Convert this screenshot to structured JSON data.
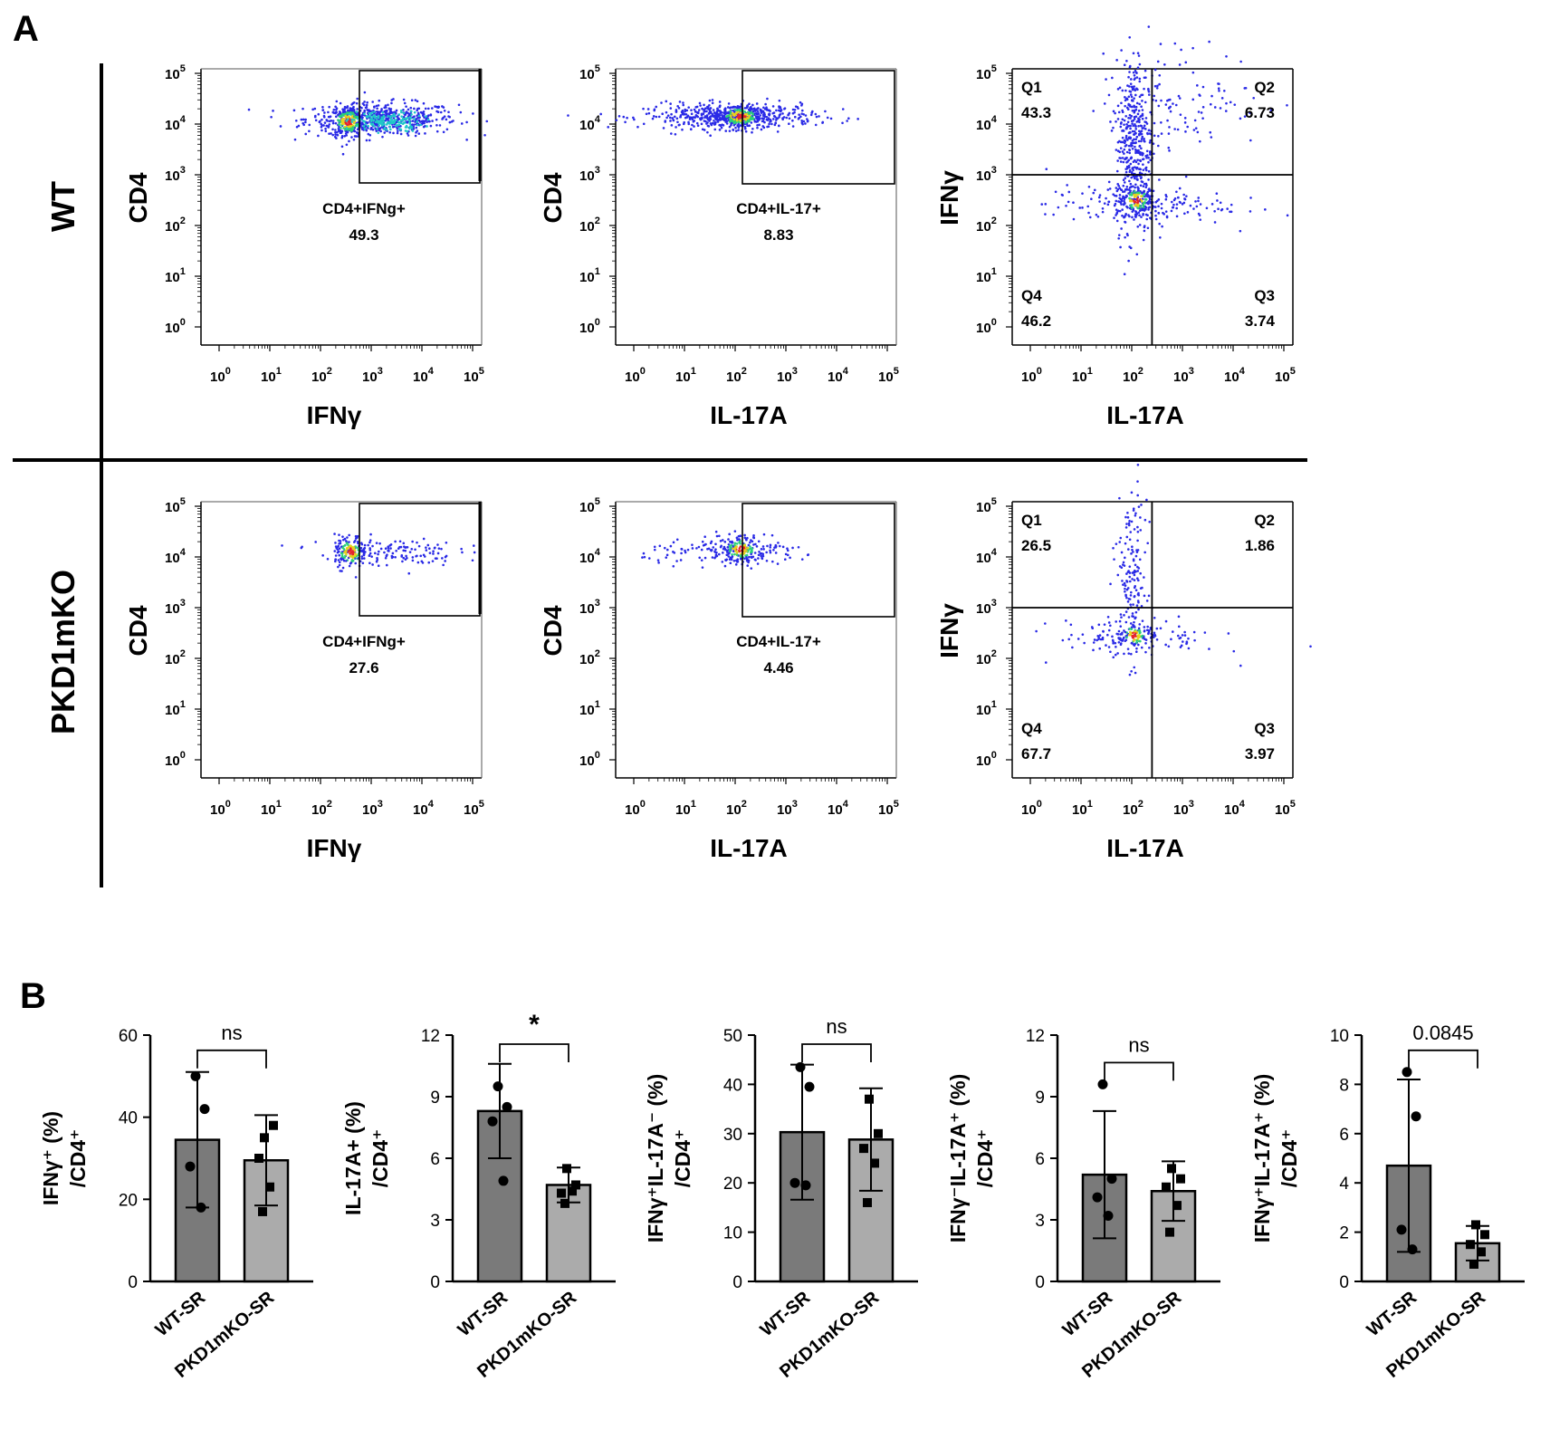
{
  "panels": {
    "a": "A",
    "b": "B"
  },
  "rows": {
    "wt": "WT",
    "ko": "PKD1mKO"
  },
  "chart_data": {
    "flow_plots": [
      {
        "row": "WT",
        "type": "scatter",
        "xlabel": "IFNγ",
        "ylabel": "CD4",
        "gate": "rect",
        "gate_label": "CD4+IFNg+",
        "gate_value": "49.3"
      },
      {
        "row": "WT",
        "type": "scatter",
        "xlabel": "IL-17A",
        "ylabel": "CD4",
        "gate": "rect",
        "gate_label": "CD4+IL-17+",
        "gate_value": "8.83"
      },
      {
        "row": "WT",
        "type": "scatter",
        "xlabel": "IL-17A",
        "ylabel": "IFNγ",
        "gate": "quadrant",
        "quadrants": [
          {
            "name": "Q1",
            "value": "43.3"
          },
          {
            "name": "Q2",
            "value": "6.73"
          },
          {
            "name": "Q3",
            "value": "3.74"
          },
          {
            "name": "Q4",
            "value": "46.2"
          }
        ]
      },
      {
        "row": "PKD1mKO",
        "type": "scatter",
        "xlabel": "IFNγ",
        "ylabel": "CD4",
        "gate": "rect",
        "gate_label": "CD4+IFNg+",
        "gate_value": "27.6"
      },
      {
        "row": "PKD1mKO",
        "type": "scatter",
        "xlabel": "IL-17A",
        "ylabel": "CD4",
        "gate": "rect",
        "gate_label": "CD4+IL-17+",
        "gate_value": "4.46"
      },
      {
        "row": "PKD1mKO",
        "type": "scatter",
        "xlabel": "IL-17A",
        "ylabel": "IFNγ",
        "gate": "quadrant",
        "quadrants": [
          {
            "name": "Q1",
            "value": "26.5"
          },
          {
            "name": "Q2",
            "value": "1.86"
          },
          {
            "name": "Q3",
            "value": "3.97"
          },
          {
            "name": "Q4",
            "value": "67.7"
          }
        ]
      }
    ],
    "log_ticks": [
      "0",
      "1",
      "2",
      "3",
      "4",
      "5"
    ],
    "bar_charts": [
      {
        "type": "bar",
        "categories": [
          "WT-SR",
          "PKD1mKO-SR"
        ],
        "ylabel_lines": [
          "IFNγ⁺ (%)",
          "/CD4⁺"
        ],
        "ylim": [
          0,
          60
        ],
        "yticks": [
          0,
          20,
          40,
          60
        ],
        "tick_labels": [
          "0",
          "20",
          "40",
          "60"
        ],
        "means": [
          34.5,
          29.5
        ],
        "errors": [
          16.5,
          11
        ],
        "points": [
          [
            50,
            42,
            28,
            18
          ],
          [
            35,
            38,
            30,
            23,
            17
          ]
        ],
        "significance": "ns"
      },
      {
        "type": "bar",
        "categories": [
          "WT-SR",
          "PKD1mKO-SR"
        ],
        "ylabel_lines": [
          "IL-17A+ (%)",
          "/CD4⁺"
        ],
        "ylim": [
          0,
          12
        ],
        "yticks": [
          0,
          3,
          6,
          9,
          12
        ],
        "tick_labels": [
          "0",
          "3",
          "6",
          "9",
          "12"
        ],
        "means": [
          8.3,
          4.7
        ],
        "errors": [
          2.3,
          0.85
        ],
        "points": [
          [
            9.5,
            8.5,
            7.8,
            4.9
          ],
          [
            5.5,
            4.7,
            4.3,
            4.4,
            3.8
          ]
        ],
        "significance": "*"
      },
      {
        "type": "bar",
        "categories": [
          "WT-SR",
          "PKD1mKO-SR"
        ],
        "ylabel_lines": [
          "IFNγ⁺IL-17A⁻ (%)",
          "/CD4⁺"
        ],
        "ylim": [
          0,
          50
        ],
        "yticks": [
          0,
          10,
          20,
          30,
          40,
          50
        ],
        "tick_labels": [
          "0",
          "10",
          "20",
          "30",
          "40",
          "50"
        ],
        "means": [
          30.3,
          28.8
        ],
        "errors": [
          13.7,
          10.4
        ],
        "points": [
          [
            43.5,
            39.5,
            20,
            19.5
          ],
          [
            37,
            30,
            27,
            24,
            16
          ]
        ],
        "significance": "ns"
      },
      {
        "type": "bar",
        "categories": [
          "WT-SR",
          "PKD1mKO-SR"
        ],
        "ylabel_lines": [
          "IFNγ⁻IL-17A⁺ (%)",
          "/CD4⁺"
        ],
        "ylim": [
          0,
          12
        ],
        "yticks": [
          0,
          3,
          6,
          9,
          12
        ],
        "tick_labels": [
          "0",
          "3",
          "6",
          "9",
          "12"
        ],
        "means": [
          5.2,
          4.4
        ],
        "errors": [
          3.1,
          1.45
        ],
        "points": [
          [
            9.6,
            5,
            4.1,
            3.2
          ],
          [
            5.5,
            5,
            4.6,
            3.7,
            2.4
          ]
        ],
        "significance": "ns"
      },
      {
        "type": "bar",
        "categories": [
          "WT-SR",
          "PKD1mKO-SR"
        ],
        "ylabel_lines": [
          "IFNγ⁺IL-17A⁺ (%)",
          "/CD4⁺"
        ],
        "ylim": [
          0,
          10
        ],
        "yticks": [
          0,
          2,
          4,
          6,
          8,
          10
        ],
        "tick_labels": [
          "0",
          "2",
          "4",
          "6",
          "8",
          "10"
        ],
        "means": [
          4.7,
          1.55
        ],
        "errors": [
          3.5,
          0.7
        ],
        "points": [
          [
            8.5,
            6.7,
            2.1,
            1.3
          ],
          [
            2.3,
            1.9,
            1.5,
            1.2,
            0.7
          ]
        ],
        "significance": "0.0845"
      }
    ]
  },
  "colors": {
    "bar_wt": "#7a7a7a",
    "bar_ko": "#ababab",
    "axis": "#000000",
    "dots_low": "#2a2ae6",
    "dots_high": "#e8242a"
  }
}
